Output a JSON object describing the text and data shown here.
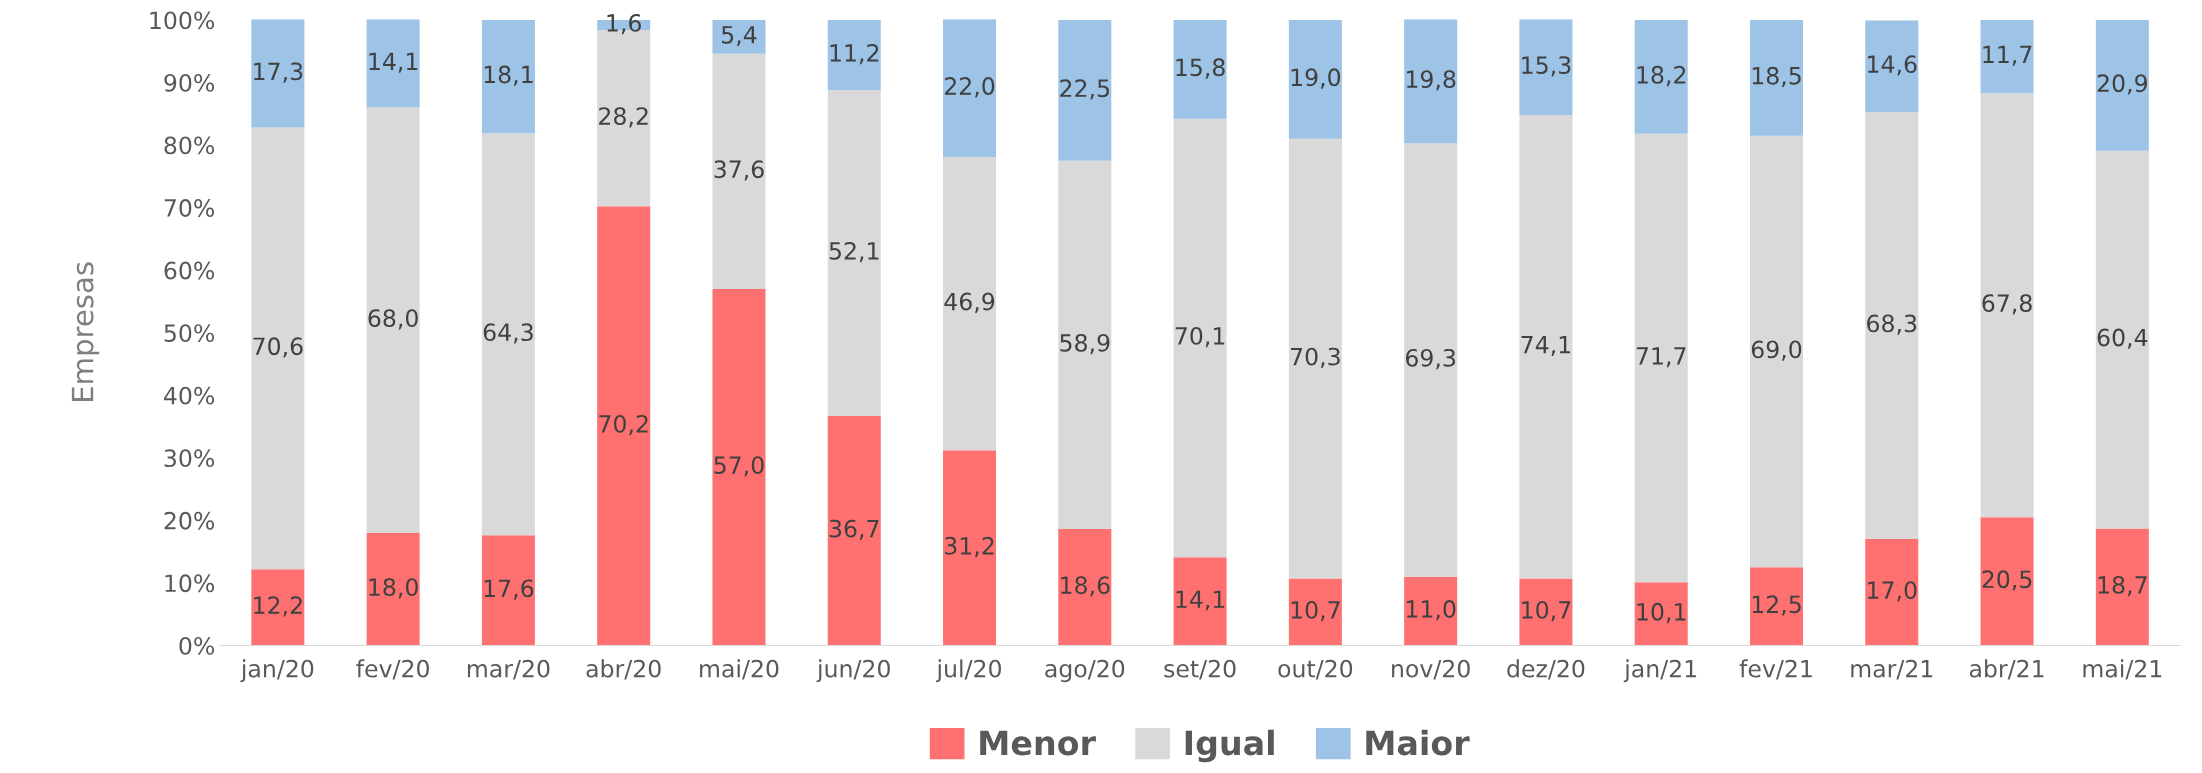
{
  "chart_data": {
    "type": "bar",
    "stacked": true,
    "ylabel": "Empresas",
    "categories": [
      "jan/20",
      "fev/20",
      "mar/20",
      "abr/20",
      "mai/20",
      "jun/20",
      "jul/20",
      "ago/20",
      "set/20",
      "out/20",
      "nov/20",
      "dez/20",
      "jan/21",
      "fev/21",
      "mar/21",
      "abr/21",
      "mai/21"
    ],
    "series": [
      {
        "name": "Menor",
        "color": "#ff7171",
        "values": [
          12.2,
          18.0,
          17.6,
          70.2,
          57.0,
          36.7,
          31.2,
          18.6,
          14.1,
          10.7,
          11.0,
          10.7,
          10.1,
          12.5,
          17.0,
          20.5,
          18.7
        ],
        "value_labels": [
          "12,2",
          "18,0",
          "17,6",
          "70,2",
          "57,0",
          "36,7",
          "31,2",
          "18,6",
          "14,1",
          "10,7",
          "11,0",
          "10,7",
          "10,1",
          "12,5",
          "17,0",
          "20,5",
          "18,7"
        ]
      },
      {
        "name": "Igual",
        "color": "#d9d9d9",
        "values": [
          70.6,
          68.0,
          64.3,
          28.2,
          37.6,
          52.1,
          46.9,
          58.9,
          70.1,
          70.3,
          69.3,
          74.1,
          71.7,
          69.0,
          68.3,
          67.8,
          60.4
        ],
        "value_labels": [
          "70,6",
          "68,0",
          "64,3",
          "28,2",
          "37,6",
          "52,1",
          "46,9",
          "58,9",
          "70,1",
          "70,3",
          "69,3",
          "74,1",
          "71,7",
          "69,0",
          "68,3",
          "67,8",
          "60,4"
        ]
      },
      {
        "name": "Maior",
        "color": "#9dc3e6",
        "values": [
          17.3,
          14.1,
          18.1,
          1.6,
          5.4,
          11.2,
          22.0,
          22.5,
          15.8,
          19.0,
          19.8,
          15.3,
          18.2,
          18.5,
          14.6,
          11.7,
          20.9
        ],
        "value_labels": [
          "17,3",
          "14,1",
          "18,1",
          "1,6",
          "5,4",
          "11,2",
          "22,0",
          "22,5",
          "15,8",
          "19,0",
          "19,8",
          "15,3",
          "18,2",
          "18,5",
          "14,6",
          "11,7",
          "20,9"
        ]
      }
    ],
    "ylim": [
      0,
      100.1
    ],
    "yticks": [
      {
        "value": 0,
        "label": "0%"
      },
      {
        "value": 10,
        "label": "10%"
      },
      {
        "value": 20,
        "label": "20%"
      },
      {
        "value": 30,
        "label": "30%"
      },
      {
        "value": 40,
        "label": "40%"
      },
      {
        "value": 50,
        "label": "50%"
      },
      {
        "value": 60,
        "label": "60%"
      },
      {
        "value": 70,
        "label": "70%"
      },
      {
        "value": 80,
        "label": "80%"
      },
      {
        "value": 90,
        "label": "90%"
      },
      {
        "value": 100,
        "label": "100%"
      }
    ],
    "grid": false,
    "legend": "bottom"
  }
}
